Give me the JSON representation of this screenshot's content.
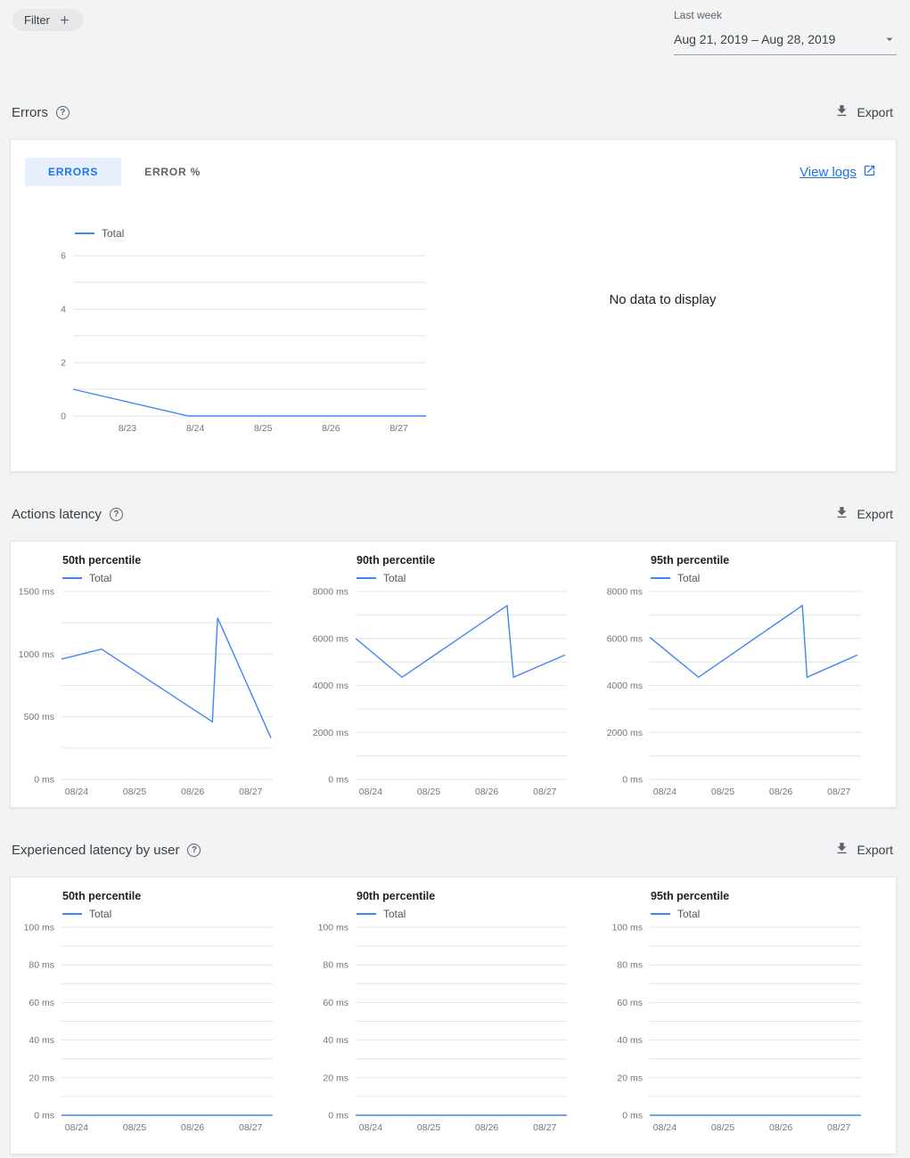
{
  "header": {
    "filter_label": "Filter",
    "date_range_label": "Last week",
    "date_range_value": "Aug 21, 2019 – Aug 28, 2019"
  },
  "sections": {
    "errors": {
      "title": "Errors",
      "export_label": "Export",
      "tabs": [
        {
          "label": "ERRORS"
        },
        {
          "label": "ERROR %"
        }
      ],
      "view_logs_label": "View logs",
      "no_data_text": "No data to display"
    },
    "actions_latency": {
      "title": "Actions latency",
      "export_label": "Export"
    },
    "experienced_latency": {
      "title": "Experienced latency by user",
      "export_label": "Export"
    }
  },
  "icons": {
    "help_glyph": "?"
  },
  "accent_color": "#4285f4",
  "chart_data": [
    {
      "id": "errors-total",
      "type": "line",
      "title": "",
      "ylim": [
        0,
        6
      ],
      "xlim": [
        -0.8,
        4.4
      ],
      "grid_values": [
        0,
        1,
        2,
        3,
        4,
        5,
        6
      ],
      "yticks": [
        {
          "v": 0,
          "label": "0"
        },
        {
          "v": 2,
          "label": "2"
        },
        {
          "v": 4,
          "label": "4"
        },
        {
          "v": 6,
          "label": "6"
        }
      ],
      "xticks": [
        {
          "v": 0,
          "label": "8/23"
        },
        {
          "v": 1,
          "label": "8/24"
        },
        {
          "v": 2,
          "label": "8/25"
        },
        {
          "v": 3,
          "label": "8/26"
        },
        {
          "v": 4,
          "label": "8/27"
        }
      ],
      "color": "#4285f4",
      "series": [
        {
          "name": "Total",
          "points": [
            [
              -0.8,
              1
            ],
            [
              0.9,
              0
            ],
            [
              4.4,
              0
            ]
          ]
        }
      ]
    },
    {
      "id": "actions-latency-p50",
      "type": "line",
      "title": "50th percentile",
      "ylim": [
        0,
        1500
      ],
      "xlim": [
        -0.26,
        3.38
      ],
      "grid_values": [
        0,
        250,
        500,
        750,
        1000,
        1250,
        1500
      ],
      "yticks": [
        {
          "v": 0,
          "label": "0 ms"
        },
        {
          "v": 500,
          "label": "500 ms"
        },
        {
          "v": 1000,
          "label": "1000 ms"
        },
        {
          "v": 1500,
          "label": "1500 ms"
        }
      ],
      "xticks": [
        {
          "v": 0,
          "label": "08/24"
        },
        {
          "v": 1,
          "label": "08/25"
        },
        {
          "v": 2,
          "label": "08/26"
        },
        {
          "v": 3,
          "label": "08/27"
        }
      ],
      "color": "#4285f4",
      "series": [
        {
          "name": "Total",
          "points": [
            [
              -0.26,
              960
            ],
            [
              0.43,
              1040
            ],
            [
              2.34,
              460
            ],
            [
              2.43,
              1290
            ],
            [
              3.35,
              330
            ]
          ]
        }
      ]
    },
    {
      "id": "actions-latency-p90",
      "type": "line",
      "title": "90th percentile",
      "ylim": [
        0,
        8000
      ],
      "xlim": [
        -0.26,
        3.38
      ],
      "grid_values": [
        0,
        1000,
        2000,
        3000,
        4000,
        5000,
        6000,
        7000,
        8000
      ],
      "yticks": [
        {
          "v": 0,
          "label": "0 ms"
        },
        {
          "v": 2000,
          "label": "2000 ms"
        },
        {
          "v": 4000,
          "label": "4000 ms"
        },
        {
          "v": 6000,
          "label": "6000 ms"
        },
        {
          "v": 8000,
          "label": "8000 ms"
        }
      ],
      "xticks": [
        {
          "v": 0,
          "label": "08/24"
        },
        {
          "v": 1,
          "label": "08/25"
        },
        {
          "v": 2,
          "label": "08/26"
        },
        {
          "v": 3,
          "label": "08/27"
        }
      ],
      "color": "#4285f4",
      "series": [
        {
          "name": "Total",
          "points": [
            [
              -0.26,
              6000
            ],
            [
              0.54,
              4350
            ],
            [
              2.35,
              7400
            ],
            [
              2.46,
              4350
            ],
            [
              3.35,
              5300
            ]
          ]
        }
      ]
    },
    {
      "id": "actions-latency-p95",
      "type": "line",
      "title": "95th percentile",
      "ylim": [
        0,
        8000
      ],
      "xlim": [
        -0.26,
        3.38
      ],
      "grid_values": [
        0,
        1000,
        2000,
        3000,
        4000,
        5000,
        6000,
        7000,
        8000
      ],
      "yticks": [
        {
          "v": 0,
          "label": "0 ms"
        },
        {
          "v": 2000,
          "label": "2000 ms"
        },
        {
          "v": 4000,
          "label": "4000 ms"
        },
        {
          "v": 6000,
          "label": "6000 ms"
        },
        {
          "v": 8000,
          "label": "8000 ms"
        }
      ],
      "xticks": [
        {
          "v": 0,
          "label": "08/24"
        },
        {
          "v": 1,
          "label": "08/25"
        },
        {
          "v": 2,
          "label": "08/26"
        },
        {
          "v": 3,
          "label": "08/27"
        }
      ],
      "color": "#4285f4",
      "series": [
        {
          "name": "Total",
          "points": [
            [
              -0.26,
              6050
            ],
            [
              0.58,
              4350
            ],
            [
              2.37,
              7400
            ],
            [
              2.45,
              4350
            ],
            [
              3.32,
              5300
            ]
          ]
        }
      ]
    },
    {
      "id": "experienced-latency-p50",
      "type": "line",
      "title": "50th percentile",
      "ylim": [
        0,
        100
      ],
      "xlim": [
        -0.26,
        3.38
      ],
      "grid_values": [
        0,
        10,
        20,
        30,
        40,
        50,
        60,
        70,
        80,
        90,
        100
      ],
      "yticks": [
        {
          "v": 0,
          "label": "0 ms"
        },
        {
          "v": 20,
          "label": "20 ms"
        },
        {
          "v": 40,
          "label": "40 ms"
        },
        {
          "v": 60,
          "label": "60 ms"
        },
        {
          "v": 80,
          "label": "80 ms"
        },
        {
          "v": 100,
          "label": "100 ms"
        }
      ],
      "xticks": [
        {
          "v": 0,
          "label": "08/24"
        },
        {
          "v": 1,
          "label": "08/25"
        },
        {
          "v": 2,
          "label": "08/26"
        },
        {
          "v": 3,
          "label": "08/27"
        }
      ],
      "color": "#4285f4",
      "series": [
        {
          "name": "Total",
          "points": [
            [
              -0.26,
              0
            ],
            [
              3.38,
              0
            ]
          ]
        }
      ]
    },
    {
      "id": "experienced-latency-p90",
      "type": "line",
      "title": "90th percentile",
      "ylim": [
        0,
        100
      ],
      "xlim": [
        -0.26,
        3.38
      ],
      "grid_values": [
        0,
        10,
        20,
        30,
        40,
        50,
        60,
        70,
        80,
        90,
        100
      ],
      "yticks": [
        {
          "v": 0,
          "label": "0 ms"
        },
        {
          "v": 20,
          "label": "20 ms"
        },
        {
          "v": 40,
          "label": "40 ms"
        },
        {
          "v": 60,
          "label": "60 ms"
        },
        {
          "v": 80,
          "label": "80 ms"
        },
        {
          "v": 100,
          "label": "100 ms"
        }
      ],
      "xticks": [
        {
          "v": 0,
          "label": "08/24"
        },
        {
          "v": 1,
          "label": "08/25"
        },
        {
          "v": 2,
          "label": "08/26"
        },
        {
          "v": 3,
          "label": "08/27"
        }
      ],
      "color": "#4285f4",
      "series": [
        {
          "name": "Total",
          "points": [
            [
              -0.26,
              0
            ],
            [
              3.38,
              0
            ]
          ]
        }
      ]
    },
    {
      "id": "experienced-latency-p95",
      "type": "line",
      "title": "95th percentile",
      "ylim": [
        0,
        100
      ],
      "xlim": [
        -0.26,
        3.38
      ],
      "grid_values": [
        0,
        10,
        20,
        30,
        40,
        50,
        60,
        70,
        80,
        90,
        100
      ],
      "yticks": [
        {
          "v": 0,
          "label": "0 ms"
        },
        {
          "v": 20,
          "label": "20 ms"
        },
        {
          "v": 40,
          "label": "40 ms"
        },
        {
          "v": 60,
          "label": "60 ms"
        },
        {
          "v": 80,
          "label": "80 ms"
        },
        {
          "v": 100,
          "label": "100 ms"
        }
      ],
      "xticks": [
        {
          "v": 0,
          "label": "08/24"
        },
        {
          "v": 1,
          "label": "08/25"
        },
        {
          "v": 2,
          "label": "08/26"
        },
        {
          "v": 3,
          "label": "08/27"
        }
      ],
      "color": "#4285f4",
      "series": [
        {
          "name": "Total",
          "points": [
            [
              -0.26,
              0
            ],
            [
              3.38,
              0
            ]
          ]
        }
      ]
    }
  ]
}
